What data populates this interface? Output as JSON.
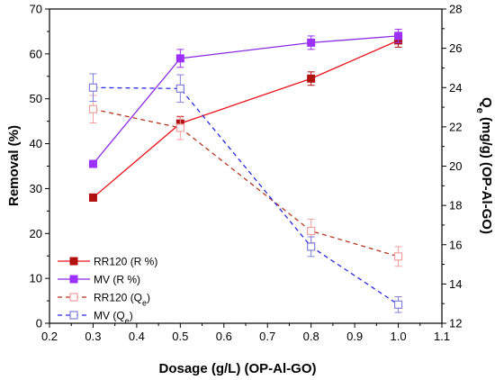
{
  "chart_data": {
    "type": "line",
    "title": "",
    "xlabel": "Dosage (g/L) (OP-Al-GO)",
    "ylabel_left": "Removal (%)",
    "ylabel_right": "Qe (mg/g) (OP-Al-GO)",
    "ylabel_right_parts": {
      "main": "Q",
      "sub": "e",
      "rest": " (mg/g) (OP-Al-GO)"
    },
    "xlim": [
      0.2,
      1.1
    ],
    "ylim_left": [
      0,
      70
    ],
    "ylim_right": [
      12,
      28
    ],
    "x_ticks": [
      "0.2",
      "0.3",
      "0.4",
      "0.5",
      "0.6",
      "0.7",
      "0.8",
      "0.9",
      "1.0",
      "1.1"
    ],
    "y_left_ticks": [
      "0",
      "10",
      "20",
      "30",
      "40",
      "50",
      "60",
      "70"
    ],
    "y_right_ticks": [
      "12",
      "14",
      "16",
      "18",
      "20",
      "22",
      "24",
      "26",
      "28"
    ],
    "grid": false,
    "legend_position": "bottom-left",
    "series": [
      {
        "name": "RR120 (R %)",
        "axis": "left",
        "style": "solid",
        "marker": "filled-square",
        "color": "#e8141c",
        "marker_color": "#b01010",
        "x": [
          0.3,
          0.5,
          0.8,
          1.0
        ],
        "y": [
          28,
          44.5,
          54.5,
          63
        ],
        "err": [
          0.8,
          1.5,
          1.5,
          1.5
        ]
      },
      {
        "name": "MV (R %)",
        "axis": "left",
        "style": "solid",
        "marker": "filled-square",
        "color": "#8a2be2",
        "marker_color": "#9b30ff",
        "x": [
          0.3,
          0.5,
          0.8,
          1.0
        ],
        "y": [
          35.5,
          59,
          62.5,
          64
        ],
        "err": [
          0.8,
          2.0,
          1.5,
          1.5
        ]
      },
      {
        "name": "RR120 (Qe)",
        "name_parts": {
          "main": "RR120 (Q",
          "sub": "e",
          "rest": ")"
        },
        "axis": "right",
        "style": "dashed",
        "marker": "open-square",
        "color": "#b5371f",
        "marker_color": "#f4a0a0",
        "x": [
          0.3,
          0.5,
          0.8,
          1.0
        ],
        "y": [
          22.9,
          21.95,
          16.7,
          15.4
        ],
        "err": [
          0.7,
          0.6,
          0.6,
          0.5
        ]
      },
      {
        "name": "MV (Qe)",
        "name_parts": {
          "main": "MV (Q",
          "sub": "e",
          "rest": ")"
        },
        "axis": "right",
        "style": "dashed",
        "marker": "open-square",
        "color": "#2a2ae0",
        "marker_color": "#8080e0",
        "x": [
          0.3,
          0.5,
          0.8,
          1.0
        ],
        "y": [
          24,
          23.95,
          15.9,
          12.95
        ],
        "err": [
          0.7,
          0.7,
          0.5,
          0.4
        ]
      }
    ]
  }
}
